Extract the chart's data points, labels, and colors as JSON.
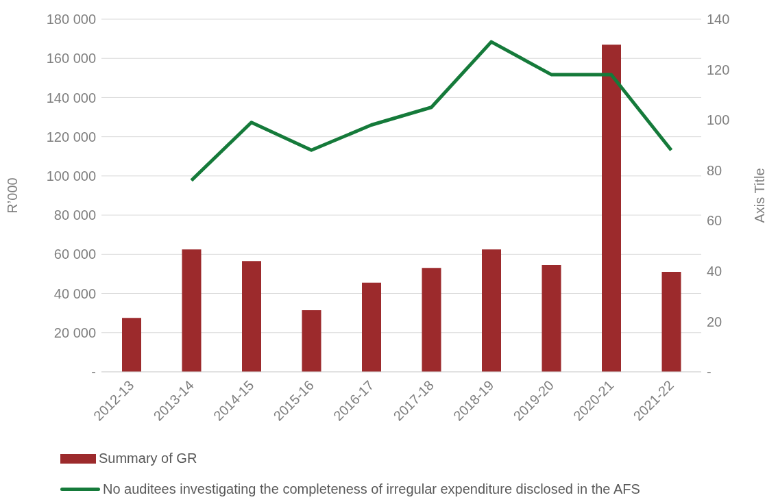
{
  "chart_data": {
    "type": "bar",
    "categories": [
      "2012-13",
      "2013-14",
      "2014-15",
      "2015-16",
      "2016-17",
      "2017-18",
      "2018-19",
      "2019-20",
      "2020-21",
      "2021-22"
    ],
    "series": [
      {
        "name": "Summary of GR",
        "type": "bar",
        "color": "#9c2a2c",
        "values": [
          27500,
          62500,
          56500,
          31500,
          45500,
          53000,
          62500,
          54500,
          167000,
          51000
        ]
      },
      {
        "name": "No auditees investigating the completeness of irregular expenditure disclosed in the AFS",
        "type": "line",
        "axis": "y2",
        "color": "#157a3a",
        "values": [
          null,
          76,
          99,
          88,
          98,
          105,
          131,
          118,
          118,
          88
        ]
      }
    ],
    "ylabel": "R’000",
    "y2label": "Axis Title",
    "ylim": [
      0,
      180000
    ],
    "yticks": [
      {
        "value": 0,
        "label": "-"
      },
      {
        "value": 20000,
        "label": "20 000"
      },
      {
        "value": 40000,
        "label": "40 000"
      },
      {
        "value": 60000,
        "label": "60 000"
      },
      {
        "value": 80000,
        "label": "80 000"
      },
      {
        "value": 100000,
        "label": "100 000"
      },
      {
        "value": 120000,
        "label": "120 000"
      },
      {
        "value": 140000,
        "label": "140 000"
      },
      {
        "value": 160000,
        "label": "160 000"
      },
      {
        "value": 180000,
        "label": "180 000"
      }
    ],
    "y2lim": [
      0,
      140
    ],
    "y2ticks": [
      {
        "value": 0,
        "label": "-"
      },
      20,
      40,
      60,
      80,
      100,
      120,
      140
    ],
    "grid": "y",
    "legend": "bottom",
    "marker": "none",
    "line_style": "solid"
  }
}
